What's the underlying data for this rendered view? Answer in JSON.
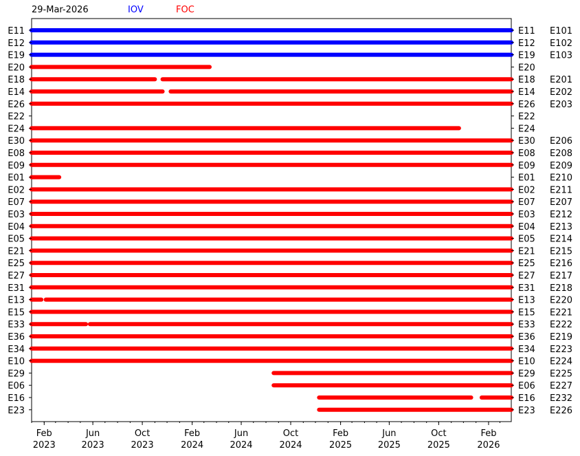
{
  "header": {
    "date": "29-Mar-2026",
    "legend": [
      {
        "label": "IOV",
        "color": "#0000ff"
      },
      {
        "label": "FOC",
        "color": "#ff0000"
      }
    ]
  },
  "chart_data": {
    "type": "timeline",
    "title": "",
    "xlabel": "",
    "ylabel": "",
    "xlim": [
      "2023-01-01",
      "2026-03-29"
    ],
    "x_ticks": [
      {
        "date": "2023-02-01",
        "label": [
          "Feb",
          "2023"
        ]
      },
      {
        "date": "2023-06-01",
        "label": [
          "Jun",
          "2023"
        ]
      },
      {
        "date": "2023-10-01",
        "label": [
          "Oct",
          "2023"
        ]
      },
      {
        "date": "2024-02-01",
        "label": [
          "Feb",
          "2024"
        ]
      },
      {
        "date": "2024-06-01",
        "label": [
          "Jun",
          "2024"
        ]
      },
      {
        "date": "2024-10-01",
        "label": [
          "Oct",
          "2024"
        ]
      },
      {
        "date": "2025-02-01",
        "label": [
          "Feb",
          "2025"
        ]
      },
      {
        "date": "2025-06-01",
        "label": [
          "Jun",
          "2025"
        ]
      },
      {
        "date": "2025-10-01",
        "label": [
          "Oct",
          "2025"
        ]
      },
      {
        "date": "2026-02-01",
        "label": [
          "Feb",
          "2026"
        ]
      }
    ],
    "colors": {
      "IOV": "#0000ff",
      "FOC": "#ff0000"
    },
    "rows": [
      {
        "left": "E11",
        "right": "E101",
        "type": "IOV",
        "segments": [
          [
            "2023-01-01",
            "2026-03-29"
          ]
        ]
      },
      {
        "left": "E12",
        "right": "E102",
        "type": "IOV",
        "segments": [
          [
            "2023-01-01",
            "2026-03-29"
          ]
        ]
      },
      {
        "left": "E19",
        "right": "E103",
        "type": "IOV",
        "segments": [
          [
            "2023-01-01",
            "2026-03-29"
          ]
        ]
      },
      {
        "left": "E20",
        "right": "",
        "type": "FOC",
        "segments": [
          [
            "2023-01-01",
            "2024-03-15"
          ]
        ]
      },
      {
        "left": "E18",
        "right": "E201",
        "type": "FOC",
        "segments": [
          [
            "2023-01-01",
            "2023-11-01"
          ],
          [
            "2023-11-20",
            "2026-03-29"
          ]
        ]
      },
      {
        "left": "E14",
        "right": "E202",
        "type": "FOC",
        "segments": [
          [
            "2023-01-01",
            "2023-11-20"
          ],
          [
            "2023-12-10",
            "2026-03-29"
          ]
        ]
      },
      {
        "left": "E26",
        "right": "E203",
        "type": "FOC",
        "segments": [
          [
            "2023-01-01",
            "2026-03-29"
          ]
        ]
      },
      {
        "left": "E22",
        "right": "",
        "type": "FOC",
        "segments": []
      },
      {
        "left": "E24",
        "right": "",
        "type": "FOC",
        "segments": [
          [
            "2023-01-01",
            "2025-11-20"
          ]
        ]
      },
      {
        "left": "E30",
        "right": "E206",
        "type": "FOC",
        "segments": [
          [
            "2023-01-01",
            "2026-03-29"
          ]
        ]
      },
      {
        "left": "E08",
        "right": "E208",
        "type": "FOC",
        "segments": [
          [
            "2023-01-01",
            "2026-03-29"
          ]
        ]
      },
      {
        "left": "E09",
        "right": "E209",
        "type": "FOC",
        "segments": [
          [
            "2023-01-01",
            "2026-03-29"
          ]
        ]
      },
      {
        "left": "E01",
        "right": "E210",
        "type": "FOC",
        "segments": [
          [
            "2023-01-01",
            "2023-03-10"
          ]
        ]
      },
      {
        "left": "E02",
        "right": "E211",
        "type": "FOC",
        "segments": [
          [
            "2023-01-01",
            "2026-03-29"
          ]
        ]
      },
      {
        "left": "E07",
        "right": "E207",
        "type": "FOC",
        "segments": [
          [
            "2023-01-01",
            "2026-03-29"
          ]
        ]
      },
      {
        "left": "E03",
        "right": "E212",
        "type": "FOC",
        "segments": [
          [
            "2023-01-01",
            "2026-03-29"
          ]
        ]
      },
      {
        "left": "E04",
        "right": "E213",
        "type": "FOC",
        "segments": [
          [
            "2023-01-01",
            "2026-03-29"
          ]
        ]
      },
      {
        "left": "E05",
        "right": "E214",
        "type": "FOC",
        "segments": [
          [
            "2023-01-01",
            "2026-03-29"
          ]
        ]
      },
      {
        "left": "E21",
        "right": "E215",
        "type": "FOC",
        "segments": [
          [
            "2023-01-01",
            "2026-03-29"
          ]
        ]
      },
      {
        "left": "E25",
        "right": "E216",
        "type": "FOC",
        "segments": [
          [
            "2023-01-01",
            "2026-03-29"
          ]
        ]
      },
      {
        "left": "E27",
        "right": "E217",
        "type": "FOC",
        "segments": [
          [
            "2023-01-01",
            "2026-03-29"
          ]
        ]
      },
      {
        "left": "E31",
        "right": "E218",
        "type": "FOC",
        "segments": [
          [
            "2023-01-01",
            "2026-03-29"
          ]
        ]
      },
      {
        "left": "E13",
        "right": "E220",
        "type": "FOC",
        "segments": [
          [
            "2023-01-01",
            "2023-01-25"
          ],
          [
            "2023-02-05",
            "2026-03-29"
          ]
        ]
      },
      {
        "left": "E15",
        "right": "E221",
        "type": "FOC",
        "segments": [
          [
            "2023-01-01",
            "2026-03-29"
          ]
        ]
      },
      {
        "left": "E33",
        "right": "E222",
        "type": "FOC",
        "segments": [
          [
            "2023-01-01",
            "2023-05-15"
          ],
          [
            "2023-05-25",
            "2026-03-29"
          ]
        ]
      },
      {
        "left": "E36",
        "right": "E219",
        "type": "FOC",
        "segments": [
          [
            "2023-01-01",
            "2026-03-29"
          ]
        ]
      },
      {
        "left": "E34",
        "right": "E223",
        "type": "FOC",
        "segments": [
          [
            "2023-01-01",
            "2026-03-29"
          ]
        ]
      },
      {
        "left": "E10",
        "right": "E224",
        "type": "FOC",
        "segments": [
          [
            "2023-01-01",
            "2026-03-29"
          ]
        ]
      },
      {
        "left": "E29",
        "right": "E225",
        "type": "FOC",
        "segments": [
          [
            "2024-08-20",
            "2026-03-29"
          ]
        ]
      },
      {
        "left": "E06",
        "right": "E227",
        "type": "FOC",
        "segments": [
          [
            "2024-08-20",
            "2026-03-29"
          ]
        ]
      },
      {
        "left": "E16",
        "right": "E232",
        "type": "FOC",
        "segments": [
          [
            "2024-12-10",
            "2025-12-20"
          ],
          [
            "2026-01-15",
            "2026-03-29"
          ]
        ]
      },
      {
        "left": "E23",
        "right": "E226",
        "type": "FOC",
        "segments": [
          [
            "2024-12-10",
            "2026-03-29"
          ]
        ]
      }
    ]
  }
}
